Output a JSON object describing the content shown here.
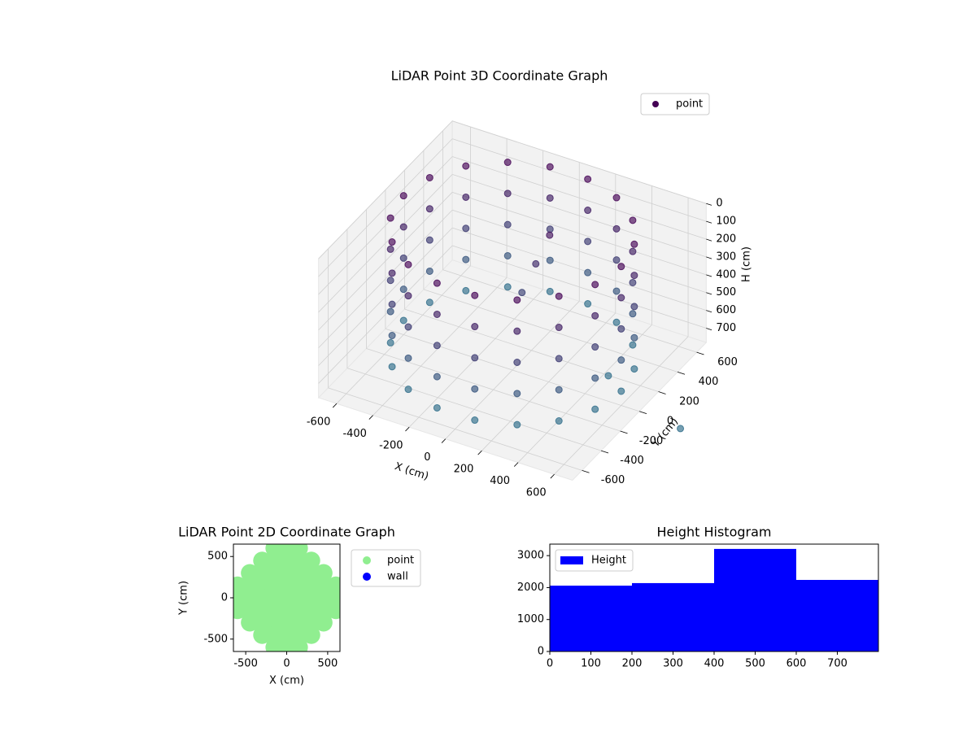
{
  "chart_data": [
    {
      "type": "scatter3d",
      "title": "LiDAR Point 3D Coordinate Graph",
      "xlabel": "X (cm)",
      "ylabel": "Y (cm)",
      "zlabel": "H (cm)",
      "xlim": [
        -700,
        700
      ],
      "ylim": [
        -700,
        700
      ],
      "zlim": [
        0,
        780
      ],
      "zinverted": true,
      "xticks": [
        -600,
        -400,
        -200,
        0,
        200,
        400,
        600
      ],
      "yticks": [
        -600,
        -400,
        -200,
        0,
        200,
        400,
        600
      ],
      "zticks": [
        0,
        100,
        200,
        300,
        400,
        500,
        600,
        700
      ],
      "legend": "upper right",
      "colormap": [
        "#440154",
        "#2a788e"
      ],
      "series": [
        {
          "name": "point",
          "color": "#440154",
          "x": [
            600,
            564,
            460,
            300,
            104,
            -104,
            -300,
            -460,
            -564,
            -600,
            -564,
            -460,
            -300,
            -104,
            104,
            300,
            460,
            564,
            600,
            564,
            460,
            300,
            104,
            -104,
            -300,
            -460,
            -564,
            -600,
            -564,
            -460,
            -300,
            -104,
            104,
            300,
            460,
            564,
            600,
            564,
            460,
            300,
            104,
            -104,
            -300,
            -460,
            -564,
            -600,
            -564,
            -460,
            -300,
            -104,
            104,
            300,
            460,
            564,
            600,
            564,
            460,
            300,
            104,
            -104,
            -300,
            -460,
            -564,
            -600,
            -564,
            -460,
            -300,
            -104,
            104,
            300,
            460,
            564,
            600,
            564,
            460,
            300,
            104,
            -104,
            -300,
            -460,
            -564,
            -600,
            -564,
            -460,
            -300,
            -104,
            104,
            300,
            460,
            564,
            100,
            50,
            0,
            483,
            1000
          ],
          "y": [
            0,
            205,
            386,
            520,
            591,
            591,
            520,
            386,
            205,
            0,
            -205,
            -386,
            -520,
            -591,
            -591,
            -520,
            -386,
            -205,
            0,
            205,
            386,
            520,
            591,
            591,
            520,
            386,
            205,
            0,
            -205,
            -386,
            -520,
            -591,
            -591,
            -520,
            -386,
            -205,
            0,
            205,
            386,
            520,
            591,
            591,
            520,
            386,
            205,
            0,
            -205,
            -386,
            -520,
            -591,
            -591,
            -520,
            -386,
            -205,
            0,
            205,
            386,
            520,
            591,
            591,
            520,
            386,
            205,
            0,
            -205,
            -386,
            -520,
            -591,
            -591,
            -520,
            -386,
            -205,
            0,
            205,
            386,
            520,
            591,
            591,
            520,
            386,
            205,
            0,
            -205,
            -386,
            -520,
            -591,
            -591,
            -520,
            -386,
            -205,
            200,
            150,
            100,
            87,
            -140
          ],
          "z": [
            0,
            0,
            0,
            0,
            0,
            0,
            0,
            0,
            0,
            0,
            0,
            0,
            0,
            0,
            0,
            0,
            0,
            0,
            175,
            175,
            175,
            175,
            175,
            175,
            175,
            175,
            175,
            175,
            175,
            175,
            175,
            175,
            175,
            175,
            175,
            175,
            350,
            350,
            350,
            350,
            350,
            350,
            350,
            350,
            350,
            350,
            350,
            350,
            350,
            350,
            350,
            350,
            350,
            350,
            525,
            525,
            525,
            525,
            525,
            525,
            525,
            525,
            525,
            525,
            525,
            525,
            525,
            525,
            525,
            525,
            525,
            525,
            700,
            700,
            700,
            700,
            700,
            700,
            700,
            700,
            700,
            700,
            700,
            700,
            700,
            700,
            700,
            700,
            700,
            700,
            100,
            250,
            400,
            700,
            700
          ]
        }
      ]
    },
    {
      "type": "scatter",
      "title": "LiDAR Point 2D Coordinate Graph",
      "xlabel": "X (cm)",
      "ylabel": "Y (cm)",
      "xlim": [
        -650,
        650
      ],
      "ylim": [
        -650,
        650
      ],
      "xticks": [
        -500,
        0,
        500
      ],
      "yticks": [
        -500,
        0,
        500
      ],
      "legend": "outside right",
      "series": [
        {
          "name": "point",
          "color": "#90ee90",
          "x": [
            -150,
            0,
            150,
            -300,
            -150,
            0,
            150,
            300,
            -450,
            -300,
            -150,
            0,
            150,
            300,
            450,
            -600,
            -450,
            -300,
            -150,
            0,
            150,
            300,
            450,
            600,
            -600,
            -450,
            -300,
            -150,
            0,
            150,
            300,
            450,
            600,
            -600,
            -450,
            -300,
            -150,
            0,
            150,
            300,
            450,
            600,
            -450,
            -300,
            -150,
            0,
            150,
            300,
            450,
            -300,
            -150,
            0,
            150,
            300,
            -150,
            0,
            150
          ],
          "y": [
            600,
            600,
            600,
            450,
            450,
            450,
            450,
            450,
            300,
            300,
            300,
            300,
            300,
            300,
            300,
            150,
            150,
            150,
            150,
            150,
            150,
            150,
            150,
            150,
            0,
            0,
            0,
            0,
            0,
            0,
            0,
            0,
            0,
            -150,
            -150,
            -150,
            -150,
            -150,
            -150,
            -150,
            -150,
            -150,
            -300,
            -300,
            -300,
            -300,
            -300,
            -300,
            -300,
            -450,
            -450,
            -450,
            -450,
            -450,
            -600,
            -600,
            -600
          ]
        },
        {
          "name": "wall",
          "color": "#0000ff",
          "x": [],
          "y": []
        }
      ]
    },
    {
      "type": "histogram",
      "title": "Height Histogram",
      "bins": [
        0,
        200,
        400,
        600,
        800
      ],
      "xlim": [
        0,
        800
      ],
      "ylim": [
        0,
        3360
      ],
      "xticks": [
        0,
        100,
        200,
        300,
        400,
        500,
        600,
        700
      ],
      "yticks": [
        0,
        1000,
        2000,
        3000
      ],
      "legend": "upper left",
      "series": [
        {
          "name": "Height",
          "color": "#0000ff",
          "values": [
            2060,
            2140,
            3210,
            2240
          ]
        }
      ]
    }
  ]
}
